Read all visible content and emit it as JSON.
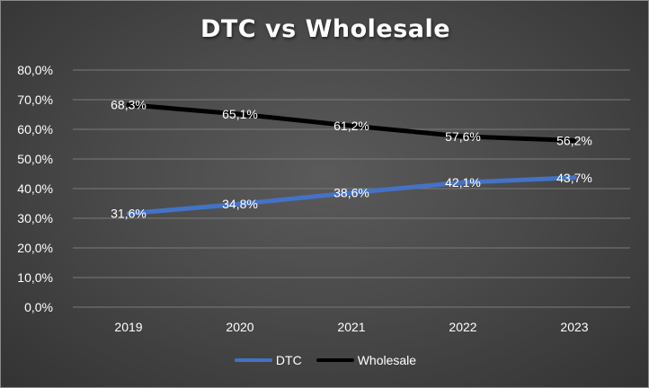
{
  "chart_data": {
    "type": "line",
    "title": "DTC vs Wholesale",
    "xlabel": "",
    "ylabel": "",
    "categories": [
      "2019",
      "2020",
      "2021",
      "2022",
      "2023"
    ],
    "y_ticks": [
      "0,0%",
      "10,0%",
      "20,0%",
      "30,0%",
      "40,0%",
      "50,0%",
      "60,0%",
      "70,0%",
      "80,0%"
    ],
    "ylim": [
      0,
      80
    ],
    "grid": true,
    "legend_position": "bottom",
    "series": [
      {
        "name": "DTC",
        "color": "#4472C4",
        "values": [
          31.6,
          34.8,
          38.6,
          42.1,
          43.7
        ],
        "labels": [
          "31,6%",
          "34,8%",
          "38,6%",
          "42,1%",
          "43,7%"
        ]
      },
      {
        "name": "Wholesale",
        "color": "#000000",
        "values": [
          68.3,
          65.1,
          61.2,
          57.6,
          56.2
        ],
        "labels": [
          "68,3%",
          "65,1%",
          "61,2%",
          "57,6%",
          "56,2%"
        ]
      }
    ]
  }
}
